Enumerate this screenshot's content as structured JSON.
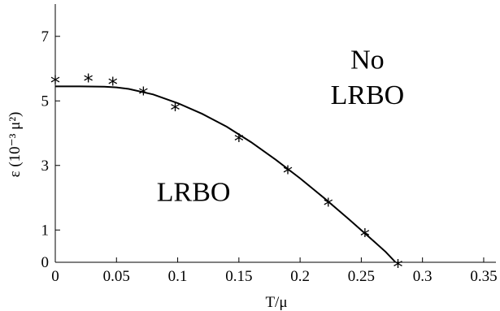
{
  "chart_data": {
    "type": "scatter",
    "title": "",
    "xlabel": "T/μ",
    "ylabel": "ε  (10⁻³ μ²)",
    "xlim": [
      0,
      0.36
    ],
    "ylim": [
      0,
      8.0
    ],
    "x_ticks": [
      0,
      0.05,
      0.1,
      0.15,
      0.2,
      0.25,
      0.3,
      0.35
    ],
    "x_tick_labels": [
      "0",
      "0.05",
      "0.1",
      "0.15",
      "0.2",
      "0.25",
      "0.3",
      "0.35"
    ],
    "y_ticks": [
      0,
      1,
      3,
      5,
      7
    ],
    "y_tick_labels": [
      "0",
      "1",
      "3",
      "5",
      "7"
    ],
    "grid": false,
    "annotations": [
      {
        "text": "No",
        "x": 0.255,
        "y": 6.0
      },
      {
        "text": "LRBO",
        "x": 0.255,
        "y": 4.9
      },
      {
        "text": "LRBO",
        "x": 0.113,
        "y": 1.9
      }
    ],
    "series": [
      {
        "marker": "asterisk",
        "x": [
          0.0,
          0.027,
          0.047,
          0.072,
          0.098,
          0.15,
          0.19,
          0.223,
          0.253,
          0.28
        ],
        "y": [
          5.7,
          5.75,
          5.65,
          5.35,
          4.85,
          3.9,
          2.9,
          1.9,
          0.95,
          0.0
        ]
      },
      {
        "type": "line",
        "x": [
          0.0,
          0.02,
          0.04,
          0.05,
          0.06,
          0.08,
          0.1,
          0.12,
          0.14,
          0.16,
          0.18,
          0.2,
          0.22,
          0.24,
          0.26,
          0.27,
          0.278
        ],
        "y": [
          5.45,
          5.45,
          5.44,
          5.42,
          5.37,
          5.2,
          4.93,
          4.6,
          4.2,
          3.72,
          3.18,
          2.6,
          1.98,
          1.33,
          0.66,
          0.32,
          0.0
        ]
      }
    ]
  }
}
